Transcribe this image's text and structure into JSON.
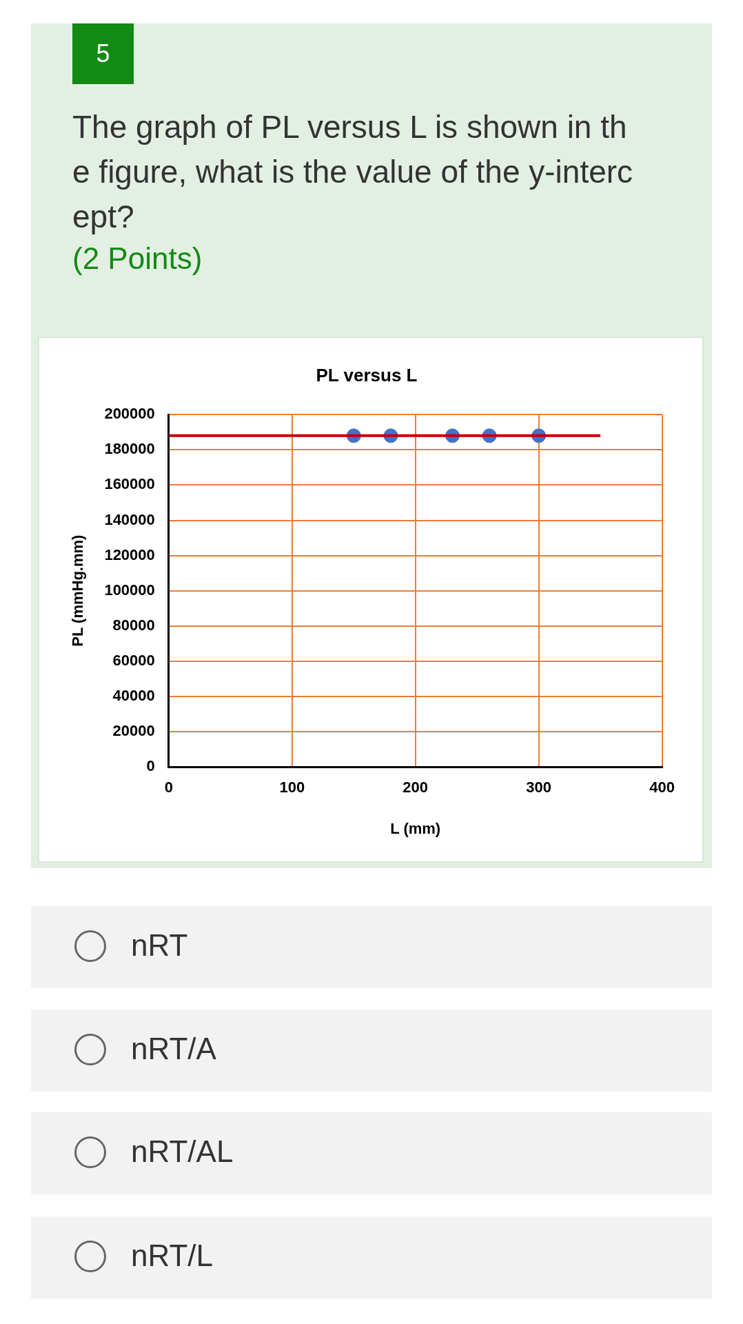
{
  "chart_data": {
    "type": "scatter",
    "title": "PL versus L",
    "xlabel": "L (mm)",
    "ylabel": "PL (mmHg.mm)",
    "xlim": [
      0,
      400
    ],
    "xticks": [
      0,
      100,
      200,
      300,
      400
    ],
    "ylim": [
      0,
      200000
    ],
    "yticks": [
      0,
      20000,
      40000,
      60000,
      80000,
      100000,
      120000,
      140000,
      160000,
      180000,
      200000
    ],
    "grid": true,
    "series": [
      {
        "color": "#4472c4",
        "marker": "circle",
        "x": [
          150,
          180,
          230,
          260,
          300
        ],
        "values": [
          188000,
          188000,
          188000,
          188000,
          188000
        ]
      },
      {
        "type": "line",
        "color": "#c00000",
        "marker": "none",
        "x": [
          0,
          350
        ],
        "values": [
          188000,
          188000
        ]
      }
    ],
    "annotations": [
      "5",
      "The graph of PL versus L is shown in the figure, what is the value of the y-intercept?",
      "(2 Points)",
      "nRT",
      "nRT/A",
      "nRT/AL",
      "nRT/L"
    ]
  }
}
